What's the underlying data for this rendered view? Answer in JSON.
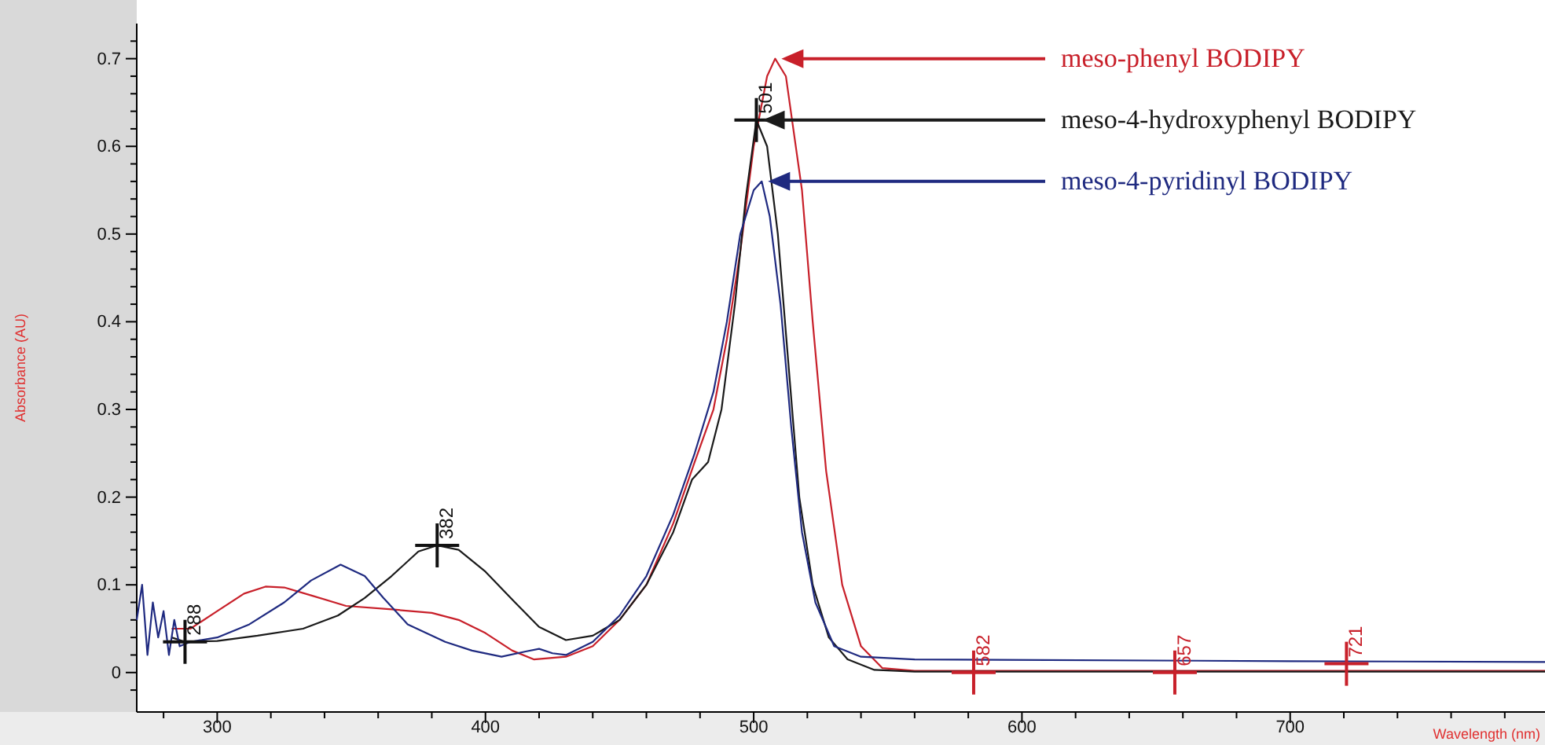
{
  "chart_data": {
    "type": "line",
    "xlabel": "Wavelength (nm)",
    "ylabel": "Absorbance (AU)",
    "xlim": [
      270,
      795
    ],
    "ylim": [
      -0.045,
      0.74
    ],
    "xticks": [
      {
        "value": 280,
        "label": null
      },
      300,
      {
        "value": 320,
        "label": null
      },
      {
        "value": 340,
        "label": null
      },
      {
        "value": 360,
        "label": null
      },
      {
        "value": 380,
        "label": null
      },
      400,
      {
        "value": 420,
        "label": null
      },
      {
        "value": 440,
        "label": null
      },
      {
        "value": 460,
        "label": null
      },
      {
        "value": 480,
        "label": null
      },
      500,
      {
        "value": 520,
        "label": null
      },
      {
        "value": 540,
        "label": null
      },
      {
        "value": 560,
        "label": null
      },
      {
        "value": 580,
        "label": null
      },
      600,
      {
        "value": 620,
        "label": null
      },
      {
        "value": 640,
        "label": null
      },
      {
        "value": 660,
        "label": null
      },
      {
        "value": 680,
        "label": null
      },
      700,
      {
        "value": 720,
        "label": null
      },
      {
        "value": 740,
        "label": null
      },
      {
        "value": 760,
        "label": null
      },
      {
        "value": 780,
        "label": null
      }
    ],
    "yticks": [
      {
        "value": -0.02,
        "label": null
      },
      0,
      {
        "value": 0.02,
        "label": null
      },
      {
        "value": 0.04,
        "label": null
      },
      {
        "value": 0.06,
        "label": null
      },
      {
        "value": 0.08,
        "label": null
      },
      0.1,
      {
        "value": 0.12,
        "label": null
      },
      {
        "value": 0.14,
        "label": null
      },
      {
        "value": 0.16,
        "label": null
      },
      {
        "value": 0.18,
        "label": null
      },
      0.2,
      {
        "value": 0.22,
        "label": null
      },
      {
        "value": 0.24,
        "label": null
      },
      {
        "value": 0.26,
        "label": null
      },
      {
        "value": 0.28,
        "label": null
      },
      0.3,
      {
        "value": 0.32,
        "label": null
      },
      {
        "value": 0.34,
        "label": null
      },
      {
        "value": 0.36,
        "label": null
      },
      {
        "value": 0.38,
        "label": null
      },
      0.4,
      {
        "value": 0.42,
        "label": null
      },
      {
        "value": 0.44,
        "label": null
      },
      {
        "value": 0.46,
        "label": null
      },
      {
        "value": 0.48,
        "label": null
      },
      0.5,
      {
        "value": 0.52,
        "label": null
      },
      {
        "value": 0.54,
        "label": null
      },
      {
        "value": 0.56,
        "label": null
      },
      {
        "value": 0.58,
        "label": null
      },
      0.6,
      {
        "value": 0.62,
        "label": null
      },
      {
        "value": 0.64,
        "label": null
      },
      {
        "value": 0.66,
        "label": null
      },
      {
        "value": 0.68,
        "label": null
      },
      0.7,
      {
        "value": 0.72,
        "label": null
      }
    ],
    "series": [
      {
        "name": "meso-phenyl BODIPY",
        "color": "#c8202a",
        "x": [
          283,
          290,
          300,
          310,
          318,
          325,
          335,
          348,
          365,
          380,
          390,
          400,
          410,
          418,
          430,
          440,
          450,
          460,
          470,
          478,
          485,
          490,
          495,
          500,
          505,
          508,
          512,
          518,
          522,
          527,
          533,
          540,
          548,
          560,
          600,
          700,
          795
        ],
        "values": [
          0.05,
          0.05,
          0.07,
          0.09,
          0.098,
          0.097,
          0.088,
          0.076,
          0.072,
          0.068,
          0.06,
          0.045,
          0.025,
          0.015,
          0.018,
          0.03,
          0.06,
          0.1,
          0.17,
          0.24,
          0.3,
          0.38,
          0.48,
          0.6,
          0.68,
          0.7,
          0.68,
          0.55,
          0.4,
          0.23,
          0.1,
          0.03,
          0.005,
          0.002,
          0.002,
          0.002,
          0.002
        ]
      },
      {
        "name": "meso-4-hydroxyphenyl BODIPY",
        "color": "#1a1a1a",
        "x": [
          283,
          288,
          300,
          315,
          332,
          345,
          355,
          365,
          375,
          382,
          390,
          400,
          411,
          420,
          430,
          440,
          450,
          460,
          470,
          477,
          483,
          488,
          493,
          497,
          501,
          505,
          509,
          513,
          517,
          522,
          528,
          535,
          545,
          560,
          700,
          795
        ],
        "values": [
          0.04,
          0.035,
          0.036,
          0.042,
          0.05,
          0.065,
          0.085,
          0.11,
          0.138,
          0.145,
          0.14,
          0.115,
          0.08,
          0.052,
          0.037,
          0.042,
          0.06,
          0.1,
          0.16,
          0.22,
          0.24,
          0.3,
          0.42,
          0.54,
          0.63,
          0.6,
          0.5,
          0.35,
          0.2,
          0.1,
          0.04,
          0.015,
          0.003,
          0.001,
          0.001,
          0.001
        ]
      },
      {
        "name": "meso-4-pyridinyl BODIPY",
        "color": "#1f2a80",
        "x": [
          270,
          272,
          274,
          276,
          278,
          280,
          282,
          284,
          286,
          290,
          300,
          312,
          325,
          335,
          346,
          355,
          362,
          371,
          385,
          395,
          406,
          415,
          420,
          425,
          430,
          440,
          450,
          460,
          470,
          478,
          485,
          490,
          495,
          500,
          503,
          506,
          510,
          514,
          518,
          523,
          530,
          540,
          560,
          700,
          795
        ],
        "values": [
          0.06,
          0.1,
          0.02,
          0.08,
          0.04,
          0.07,
          0.02,
          0.06,
          0.03,
          0.035,
          0.04,
          0.055,
          0.08,
          0.105,
          0.123,
          0.11,
          0.085,
          0.055,
          0.035,
          0.025,
          0.018,
          0.024,
          0.027,
          0.022,
          0.02,
          0.035,
          0.065,
          0.11,
          0.18,
          0.25,
          0.32,
          0.4,
          0.5,
          0.55,
          0.56,
          0.52,
          0.42,
          0.28,
          0.16,
          0.08,
          0.03,
          0.018,
          0.015,
          0.013,
          0.012
        ]
      }
    ],
    "annotations": [
      {
        "text": "288",
        "x": 288,
        "y": 0.035
      },
      {
        "text": "382",
        "x": 382,
        "y": 0.145
      },
      {
        "text": "501",
        "x": 501,
        "y": 0.63
      },
      {
        "text": "582",
        "x": 582,
        "y": 0
      },
      {
        "text": "657",
        "x": 657,
        "y": 0
      },
      {
        "text": "721",
        "x": 721,
        "y": 0.01
      }
    ]
  }
}
